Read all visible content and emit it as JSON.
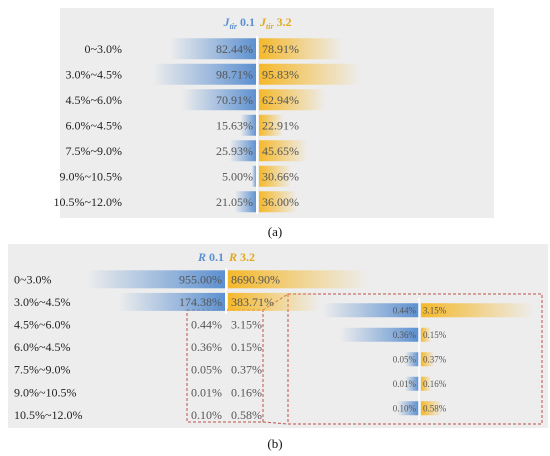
{
  "chart_data": [
    {
      "type": "bar",
      "panel": "(a)",
      "categories": [
        "0~3.0%",
        "3.0%~4.5%",
        "4.5%~6.0%",
        "6.0%~4.5%",
        "7.5%~9.0%",
        "9.0%~10.5%",
        "10.5%~12.0%"
      ],
      "series": [
        {
          "name": "J_tir 0.1",
          "values": [
            82.44,
            98.71,
            70.91,
            15.63,
            25.93,
            5.0,
            21.05
          ],
          "labels": [
            "82.44%",
            "98.71%",
            "70.91%",
            "15.63%",
            "25.93%",
            "5.00%",
            "21.05%"
          ]
        },
        {
          "name": "J_tir 3.2",
          "values": [
            78.91,
            95.83,
            62.94,
            22.91,
            45.65,
            30.66,
            36.0
          ],
          "labels": [
            "78.91%",
            "95.83%",
            "62.94%",
            "22.91%",
            "45.65%",
            "30.66%",
            "36.00%"
          ]
        }
      ],
      "header_left": {
        "base": "J",
        "sub": "tir",
        "num": "0.1"
      },
      "header_right": {
        "base": "J",
        "sub": "tir",
        "num": "3.2"
      },
      "colors": {
        "left": "#5b8fd0",
        "right": "#f5b82a",
        "panel_bg": "#ededed"
      }
    },
    {
      "type": "bar",
      "panel": "(b)",
      "categories": [
        "0~3.0%",
        "3.0%~4.5%",
        "4.5%~6.0%",
        "6.0%~4.5%",
        "7.5%~9.0%",
        "9.0%~10.5%",
        "10.5%~12.0%"
      ],
      "series": [
        {
          "name": "R 0.1",
          "values": [
            955.0,
            174.38,
            0.44,
            0.36,
            0.05,
            0.01,
            0.1
          ],
          "labels": [
            "955.00%",
            "174.38%",
            "0.44%",
            "0.36%",
            "0.05%",
            "0.01%",
            "0.10%"
          ]
        },
        {
          "name": "R 3.2",
          "values": [
            8690.9,
            383.71,
            3.15,
            0.15,
            0.37,
            0.16,
            0.58
          ],
          "labels": [
            "8690.90%",
            "383.71%",
            "3.15%",
            "0.15%",
            "0.37%",
            "0.16%",
            "0.58%"
          ]
        }
      ],
      "header_left": {
        "base": "R",
        "num": "0.1"
      },
      "header_right": {
        "base": "R",
        "num": "3.2"
      },
      "zoom_inset": {
        "categories_from": 2,
        "categories_to": 6,
        "border": "dashed",
        "border_color": "#c0504d"
      },
      "colors": {
        "left": "#5b8fd0",
        "right": "#f5b82a",
        "panel_bg": "#ededed"
      }
    }
  ],
  "captions": [
    "(a)",
    "(b)"
  ]
}
